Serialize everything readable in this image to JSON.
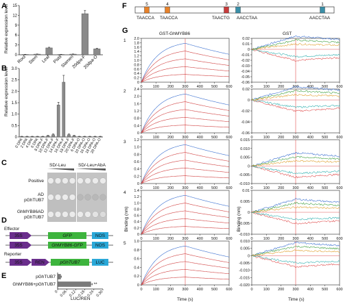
{
  "panels": {
    "A": {
      "letter": "A",
      "ylabel": "Relative expression level",
      "chart_data": {
        "type": "bar",
        "categories": [
          "Root",
          "Stem",
          "Leaf",
          "Pistil",
          "Stamen",
          "20dpa-F",
          "20dpa-O"
        ],
        "values": [
          0.1,
          0.2,
          2.1,
          0.1,
          0.2,
          12.5,
          1.8
        ],
        "errors": [
          0.05,
          0.05,
          0.2,
          0.05,
          0.05,
          1.0,
          0.2
        ],
        "ylim": [
          0,
          15
        ],
        "yticks": [
          0,
          3,
          6,
          9,
          12,
          15
        ]
      }
    },
    "B": {
      "letter": "B",
      "ylabel": "Relative expression level",
      "chart_data": {
        "type": "bar",
        "categories": [
          "0 DPA",
          "2 DPA",
          "4 DPA",
          "6 DPA",
          "8 DPA-F",
          "10 DPA-F",
          "12 DPA-F",
          "14 DPA-F",
          "16 DPA-F",
          "18 DPA-F",
          "20 DPA-F",
          "6 DPA-O",
          "10 DPA-O",
          "16 DPA-O",
          "18 DPA-O",
          "20 DPA-O"
        ],
        "values": [
          0.02,
          0.02,
          0.02,
          0.02,
          0.02,
          0.05,
          0.1,
          1.4,
          2.4,
          0.1,
          0.05,
          0.02,
          0.02,
          0.02,
          0.02,
          0.02
        ],
        "errors": [
          0.01,
          0.01,
          0.01,
          0.01,
          0.01,
          0.02,
          0.03,
          0.12,
          0.3,
          0.03,
          0.02,
          0.01,
          0.01,
          0.01,
          0.01,
          0.01
        ],
        "ylim": [
          0,
          3.0
        ],
        "yticks": [
          "0",
          "0.5",
          "1.0",
          "1.5",
          "2.0",
          "2.5",
          "3.0"
        ]
      }
    },
    "C": {
      "letter": "C",
      "header_left": "SD/-Leu",
      "header_right": "SD/-Leu+AbA",
      "rows": [
        {
          "label_lines": [
            "Positive"
          ],
          "left": [
            1,
            1,
            1,
            1
          ],
          "right": [
            1,
            1,
            1,
            1
          ]
        },
        {
          "label_lines": [
            "AD",
            "pGhTUB7"
          ],
          "left": [
            1,
            1,
            1,
            1
          ],
          "right": [
            0,
            0,
            0,
            0
          ]
        },
        {
          "label_lines": [
            "GhMYB86AD",
            "pGhTUB7"
          ],
          "left": [
            1,
            1,
            1,
            1
          ],
          "right": [
            1,
            1,
            0.8,
            0.6
          ]
        }
      ]
    },
    "D": {
      "letter": "D",
      "effector_label": "Effector",
      "reporter_label": "Reporter",
      "constructs": [
        {
          "promoter": "35S",
          "gene": "GFP",
          "term": "NOS"
        },
        {
          "promoter": "35S",
          "gene": "GhMYB86-GFP",
          "term": "NOS"
        },
        {
          "promoter": "35S",
          "promoter2": "REN",
          "gene": "pGhTUB7",
          "term": "LUC"
        }
      ],
      "colors": {
        "promoter": "#6a2e8c",
        "gene": "#3db43d",
        "term": "#2aa8d8"
      }
    },
    "E": {
      "letter": "E",
      "xlabel": "LUC/REN",
      "significance": "**",
      "chart_data": {
        "type": "bar",
        "orientation": "horizontal",
        "categories": [
          "pGhTUB7",
          "GhMYB86+pGhTUB7"
        ],
        "values": [
          0.02,
          0.22
        ],
        "errors": [
          0.005,
          0.01
        ],
        "xlim": [
          0,
          0.3
        ],
        "xticks": [
          "0",
          "0.06",
          "0.12",
          "0.18",
          "0.24",
          "0.30"
        ]
      }
    },
    "F": {
      "letter": "F",
      "sites": [
        {
          "num": "5",
          "seq": "TAACCA",
          "color": "#e8822a"
        },
        {
          "num": "4",
          "seq": "TAACCA",
          "color": "#e8822a"
        },
        {
          "num": "3",
          "seq": "TAACTG",
          "color": "#c83a3a"
        },
        {
          "num": "2",
          "seq": "AACCTAA",
          "color": "#3a8fa8"
        },
        {
          "num": "1",
          "seq": "AACCTAA",
          "color": "#3a8fa8"
        }
      ]
    },
    "G": {
      "letter": "G",
      "col_left": "GST-GhMYB86",
      "col_right": "GST",
      "ylabel": "Binding (nm)",
      "xlabel": "Time (s)",
      "xticks": [
        "0",
        "100",
        "200",
        "300",
        "400",
        "500",
        "600"
      ],
      "rows": [
        {
          "num": "1",
          "left_ylim": [
            0,
            2.0
          ],
          "left_yticks": [
            "0",
            "0.2",
            "0.4",
            "0.6",
            "0.8",
            "1.0",
            "1.2",
            "1.4",
            "1.6",
            "1.8",
            "2.0"
          ],
          "right_ylim": [
            -0.06,
            0.02
          ],
          "right_yticks": [
            "0.02",
            "0.01",
            "0",
            "-0.01",
            "-0.02",
            "-0.03",
            "-0.04",
            "-0.05",
            "-0.06"
          ]
        },
        {
          "num": "2",
          "left_ylim": [
            0,
            2.4
          ],
          "left_yticks": [
            "0",
            "0.4",
            "0.8",
            "1.2",
            "1.6",
            "2.0",
            "2.4"
          ],
          "right_ylim": [
            -0.06,
            0.02
          ],
          "right_yticks": [
            "0.02",
            "0",
            "-0.02",
            "-0.04",
            "-0.06"
          ]
        },
        {
          "num": "3",
          "left_ylim": [
            0,
            1.2
          ],
          "left_yticks": [
            "0",
            "0.2",
            "0.4",
            "0.6",
            "0.8",
            "1.0",
            "1.2"
          ],
          "right_ylim": [
            -0.01,
            0.015
          ],
          "right_yticks": [
            "0.015",
            "0.010",
            "0.005",
            "0",
            "-0.005",
            "-0.010"
          ]
        },
        {
          "num": "4",
          "left_ylim": [
            0,
            1.4
          ],
          "left_yticks": [
            "0",
            "0.2",
            "0.4",
            "0.6",
            "0.8",
            "1.0",
            "1.2",
            "1.4"
          ],
          "right_ylim": [
            -0.01,
            0.01
          ],
          "right_yticks": [
            "0.01",
            "0.005",
            "0",
            "-0.005",
            "-0.010"
          ]
        },
        {
          "num": "5",
          "left_ylim": [
            0,
            1.0
          ],
          "left_yticks": [
            "0",
            "0.2",
            "0.4",
            "0.6",
            "0.8",
            "1.0"
          ],
          "right_ylim": [
            -0.02,
            0.01
          ],
          "right_yticks": [
            "0.010",
            "0.005",
            "0",
            "-0.005",
            "-0.010",
            "-0.015",
            "-0.020"
          ]
        }
      ]
    }
  }
}
